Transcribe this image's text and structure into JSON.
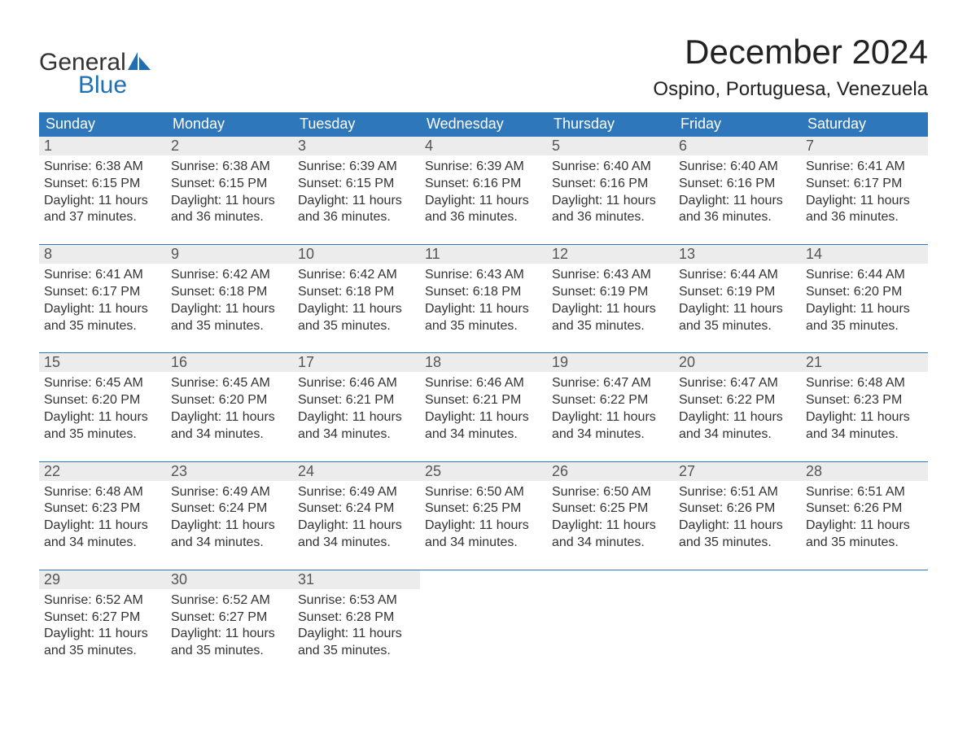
{
  "brand": {
    "word1": "General",
    "word2": "Blue",
    "word1_color": "#333333",
    "word2_color": "#1f6fb2",
    "sail_color": "#1f6fb2"
  },
  "title": {
    "month": "December 2024",
    "location": "Ospino, Portuguesa, Venezuela",
    "month_fontsize": 42,
    "location_fontsize": 24,
    "text_color": "#222222"
  },
  "calendar": {
    "header_bg": "#2d77ba",
    "header_text_color": "#ffffff",
    "daynum_bg": "#ececec",
    "daynum_color": "#555555",
    "cell_text_color": "#333333",
    "week_border_color": "#2d77ba",
    "columns": [
      "Sunday",
      "Monday",
      "Tuesday",
      "Wednesday",
      "Thursday",
      "Friday",
      "Saturday"
    ],
    "weeks": [
      [
        {
          "num": "1",
          "sunrise": "Sunrise: 6:38 AM",
          "sunset": "Sunset: 6:15 PM",
          "day1": "Daylight: 11 hours",
          "day2": "and 37 minutes."
        },
        {
          "num": "2",
          "sunrise": "Sunrise: 6:38 AM",
          "sunset": "Sunset: 6:15 PM",
          "day1": "Daylight: 11 hours",
          "day2": "and 36 minutes."
        },
        {
          "num": "3",
          "sunrise": "Sunrise: 6:39 AM",
          "sunset": "Sunset: 6:15 PM",
          "day1": "Daylight: 11 hours",
          "day2": "and 36 minutes."
        },
        {
          "num": "4",
          "sunrise": "Sunrise: 6:39 AM",
          "sunset": "Sunset: 6:16 PM",
          "day1": "Daylight: 11 hours",
          "day2": "and 36 minutes."
        },
        {
          "num": "5",
          "sunrise": "Sunrise: 6:40 AM",
          "sunset": "Sunset: 6:16 PM",
          "day1": "Daylight: 11 hours",
          "day2": "and 36 minutes."
        },
        {
          "num": "6",
          "sunrise": "Sunrise: 6:40 AM",
          "sunset": "Sunset: 6:16 PM",
          "day1": "Daylight: 11 hours",
          "day2": "and 36 minutes."
        },
        {
          "num": "7",
          "sunrise": "Sunrise: 6:41 AM",
          "sunset": "Sunset: 6:17 PM",
          "day1": "Daylight: 11 hours",
          "day2": "and 36 minutes."
        }
      ],
      [
        {
          "num": "8",
          "sunrise": "Sunrise: 6:41 AM",
          "sunset": "Sunset: 6:17 PM",
          "day1": "Daylight: 11 hours",
          "day2": "and 35 minutes."
        },
        {
          "num": "9",
          "sunrise": "Sunrise: 6:42 AM",
          "sunset": "Sunset: 6:18 PM",
          "day1": "Daylight: 11 hours",
          "day2": "and 35 minutes."
        },
        {
          "num": "10",
          "sunrise": "Sunrise: 6:42 AM",
          "sunset": "Sunset: 6:18 PM",
          "day1": "Daylight: 11 hours",
          "day2": "and 35 minutes."
        },
        {
          "num": "11",
          "sunrise": "Sunrise: 6:43 AM",
          "sunset": "Sunset: 6:18 PM",
          "day1": "Daylight: 11 hours",
          "day2": "and 35 minutes."
        },
        {
          "num": "12",
          "sunrise": "Sunrise: 6:43 AM",
          "sunset": "Sunset: 6:19 PM",
          "day1": "Daylight: 11 hours",
          "day2": "and 35 minutes."
        },
        {
          "num": "13",
          "sunrise": "Sunrise: 6:44 AM",
          "sunset": "Sunset: 6:19 PM",
          "day1": "Daylight: 11 hours",
          "day2": "and 35 minutes."
        },
        {
          "num": "14",
          "sunrise": "Sunrise: 6:44 AM",
          "sunset": "Sunset: 6:20 PM",
          "day1": "Daylight: 11 hours",
          "day2": "and 35 minutes."
        }
      ],
      [
        {
          "num": "15",
          "sunrise": "Sunrise: 6:45 AM",
          "sunset": "Sunset: 6:20 PM",
          "day1": "Daylight: 11 hours",
          "day2": "and 35 minutes."
        },
        {
          "num": "16",
          "sunrise": "Sunrise: 6:45 AM",
          "sunset": "Sunset: 6:20 PM",
          "day1": "Daylight: 11 hours",
          "day2": "and 34 minutes."
        },
        {
          "num": "17",
          "sunrise": "Sunrise: 6:46 AM",
          "sunset": "Sunset: 6:21 PM",
          "day1": "Daylight: 11 hours",
          "day2": "and 34 minutes."
        },
        {
          "num": "18",
          "sunrise": "Sunrise: 6:46 AM",
          "sunset": "Sunset: 6:21 PM",
          "day1": "Daylight: 11 hours",
          "day2": "and 34 minutes."
        },
        {
          "num": "19",
          "sunrise": "Sunrise: 6:47 AM",
          "sunset": "Sunset: 6:22 PM",
          "day1": "Daylight: 11 hours",
          "day2": "and 34 minutes."
        },
        {
          "num": "20",
          "sunrise": "Sunrise: 6:47 AM",
          "sunset": "Sunset: 6:22 PM",
          "day1": "Daylight: 11 hours",
          "day2": "and 34 minutes."
        },
        {
          "num": "21",
          "sunrise": "Sunrise: 6:48 AM",
          "sunset": "Sunset: 6:23 PM",
          "day1": "Daylight: 11 hours",
          "day2": "and 34 minutes."
        }
      ],
      [
        {
          "num": "22",
          "sunrise": "Sunrise: 6:48 AM",
          "sunset": "Sunset: 6:23 PM",
          "day1": "Daylight: 11 hours",
          "day2": "and 34 minutes."
        },
        {
          "num": "23",
          "sunrise": "Sunrise: 6:49 AM",
          "sunset": "Sunset: 6:24 PM",
          "day1": "Daylight: 11 hours",
          "day2": "and 34 minutes."
        },
        {
          "num": "24",
          "sunrise": "Sunrise: 6:49 AM",
          "sunset": "Sunset: 6:24 PM",
          "day1": "Daylight: 11 hours",
          "day2": "and 34 minutes."
        },
        {
          "num": "25",
          "sunrise": "Sunrise: 6:50 AM",
          "sunset": "Sunset: 6:25 PM",
          "day1": "Daylight: 11 hours",
          "day2": "and 34 minutes."
        },
        {
          "num": "26",
          "sunrise": "Sunrise: 6:50 AM",
          "sunset": "Sunset: 6:25 PM",
          "day1": "Daylight: 11 hours",
          "day2": "and 34 minutes."
        },
        {
          "num": "27",
          "sunrise": "Sunrise: 6:51 AM",
          "sunset": "Sunset: 6:26 PM",
          "day1": "Daylight: 11 hours",
          "day2": "and 35 minutes."
        },
        {
          "num": "28",
          "sunrise": "Sunrise: 6:51 AM",
          "sunset": "Sunset: 6:26 PM",
          "day1": "Daylight: 11 hours",
          "day2": "and 35 minutes."
        }
      ],
      [
        {
          "num": "29",
          "sunrise": "Sunrise: 6:52 AM",
          "sunset": "Sunset: 6:27 PM",
          "day1": "Daylight: 11 hours",
          "day2": "and 35 minutes."
        },
        {
          "num": "30",
          "sunrise": "Sunrise: 6:52 AM",
          "sunset": "Sunset: 6:27 PM",
          "day1": "Daylight: 11 hours",
          "day2": "and 35 minutes."
        },
        {
          "num": "31",
          "sunrise": "Sunrise: 6:53 AM",
          "sunset": "Sunset: 6:28 PM",
          "day1": "Daylight: 11 hours",
          "day2": "and 35 minutes."
        },
        null,
        null,
        null,
        null
      ]
    ]
  }
}
